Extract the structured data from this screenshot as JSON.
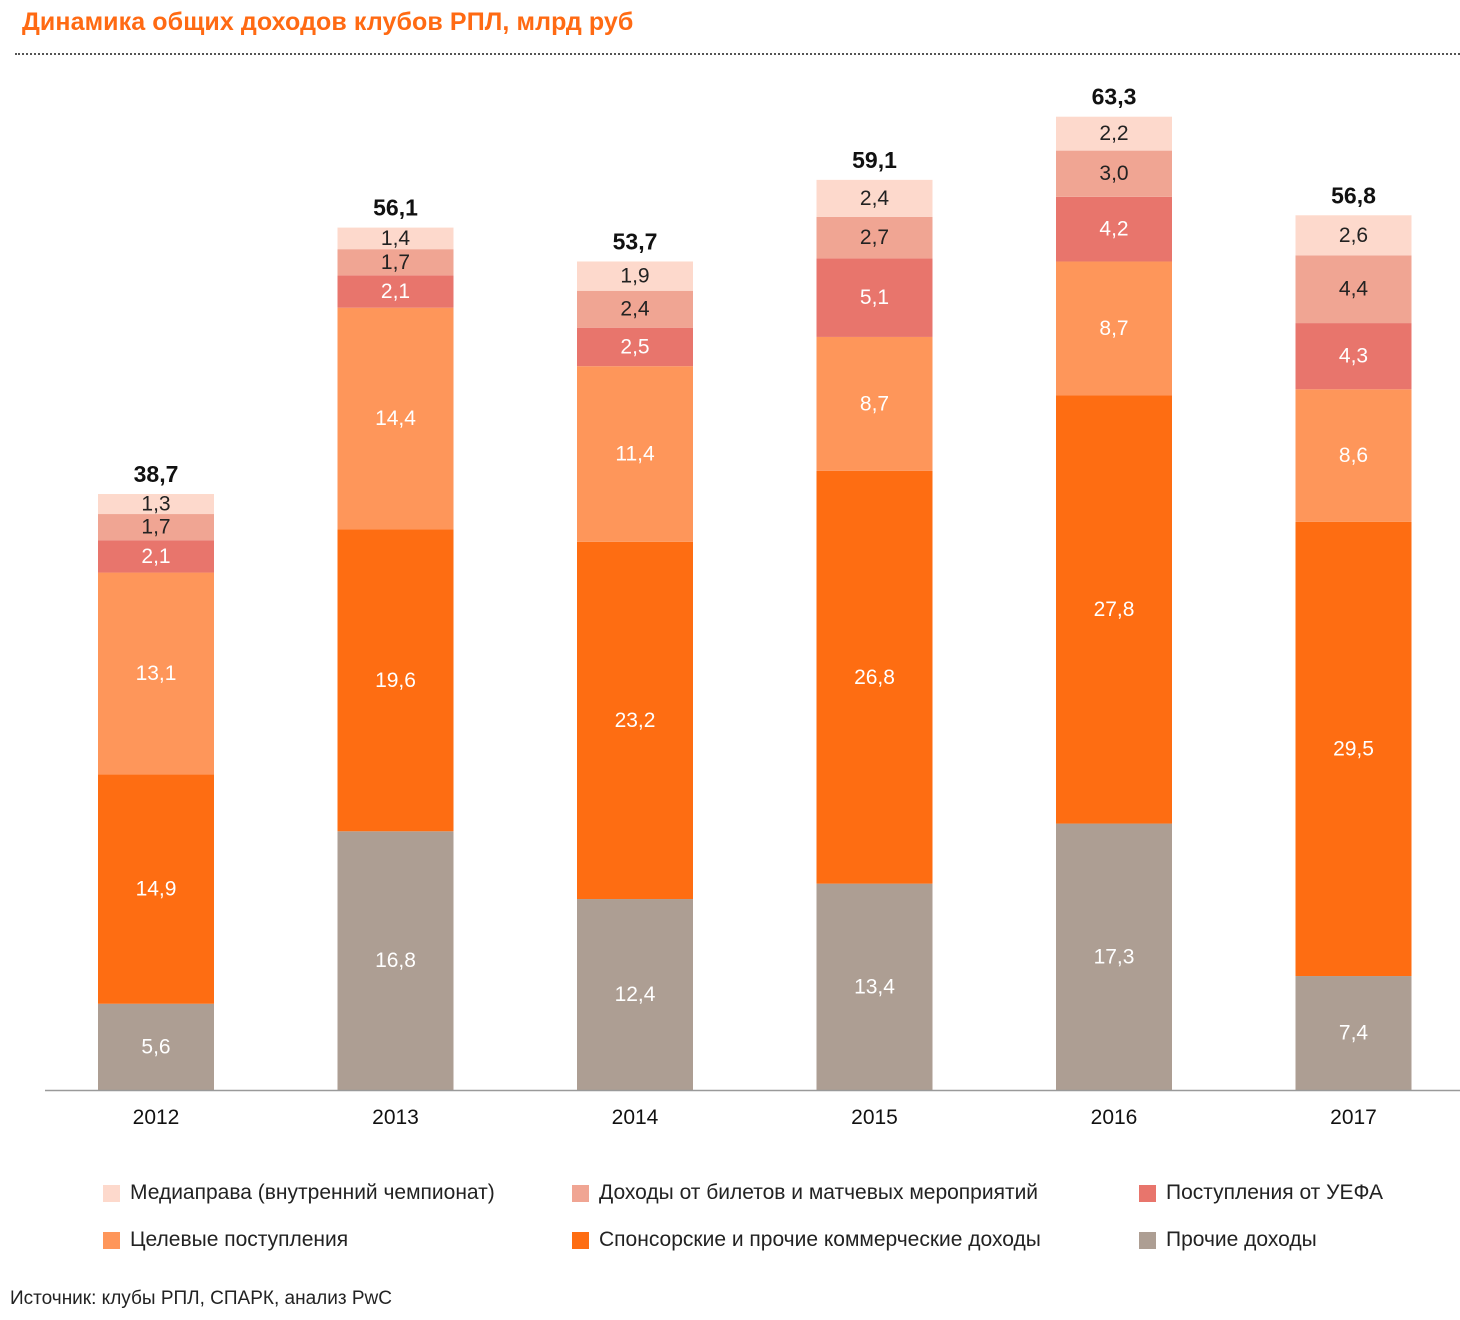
{
  "title": "Динамика общих доходов клубов РПЛ, млрд руб",
  "source": "Источник: клубы РПЛ, СПАРК, анализ PwC",
  "chart_data": {
    "type": "bar",
    "stacked": true,
    "title": "Динамика общих доходов клубов РПЛ, млрд руб",
    "xlabel": "",
    "ylabel": "",
    "categories": [
      "2012",
      "2013",
      "2014",
      "2015",
      "2016",
      "2017"
    ],
    "totals": [
      "38,7",
      "56,1",
      "53,7",
      "59,1",
      "63,3",
      "56,8"
    ],
    "series": [
      {
        "name": "Прочие доходы",
        "color": "#ad9e93",
        "values": [
          5.6,
          16.8,
          12.4,
          13.4,
          17.3,
          7.4
        ],
        "labels": [
          "5,6",
          "16,8",
          "12,4",
          "13,4",
          "17,3",
          "7,4"
        ],
        "label_color": "#ffffff"
      },
      {
        "name": "Спонсорские и прочие коммерческие доходы",
        "color": "#fe6d12",
        "values": [
          14.9,
          19.6,
          23.2,
          26.8,
          27.8,
          29.5
        ],
        "labels": [
          "14,9",
          "19,6",
          "23,2",
          "26,8",
          "27,8",
          "29,5"
        ],
        "label_color": "#ffffff"
      },
      {
        "name": "Целевые поступления",
        "color": "#fe965a",
        "values": [
          13.1,
          14.4,
          11.4,
          8.7,
          8.7,
          8.6
        ],
        "labels": [
          "13,1",
          "14,4",
          "11,4",
          "8,7",
          "8,7",
          "8,6"
        ],
        "label_color": "#ffffff"
      },
      {
        "name": "Поступления от УЕФА",
        "color": "#e8756c",
        "values": [
          2.1,
          2.1,
          2.5,
          5.1,
          4.2,
          4.3
        ],
        "labels": [
          "2,1",
          "2,1",
          "2,5",
          "5,1",
          "4,2",
          "4,3"
        ],
        "label_color": "#ffffff"
      },
      {
        "name": "Доходы  от билетов и матчевых  мероприятий",
        "color": "#f0a593",
        "values": [
          1.7,
          1.7,
          2.4,
          2.7,
          3.0,
          4.4
        ],
        "labels": [
          "1,7",
          "1,7",
          "2,4",
          "2,7",
          "3,0",
          "4,4"
        ],
        "label_color": "#222222"
      },
      {
        "name": "Медиаправа (внутренний чемпионат)",
        "color": "#fdd9cc",
        "values": [
          1.3,
          1.4,
          1.9,
          2.4,
          2.2,
          2.6
        ],
        "labels": [
          "1,3",
          "1,4",
          "1,9",
          "2,4",
          "2,2",
          "2,6"
        ],
        "label_color": "#222222"
      }
    ],
    "legend_position": "bottom",
    "grid": false
  },
  "legend": [
    {
      "label": "Медиаправа (внутренний чемпионат)",
      "color": "#fdd9cc"
    },
    {
      "label": "Доходы  от билетов и матчевых  мероприятий",
      "color": "#f0a593"
    },
    {
      "label": "Поступления от УЕФА",
      "color": "#e8756c"
    },
    {
      "label": "Целевые  поступления",
      "color": "#fe965a"
    },
    {
      "label": "Спонсорские  и прочие  коммерческие  доходы",
      "color": "#fe6d12"
    },
    {
      "label": "Прочие доходы",
      "color": "#ad9e93"
    }
  ]
}
